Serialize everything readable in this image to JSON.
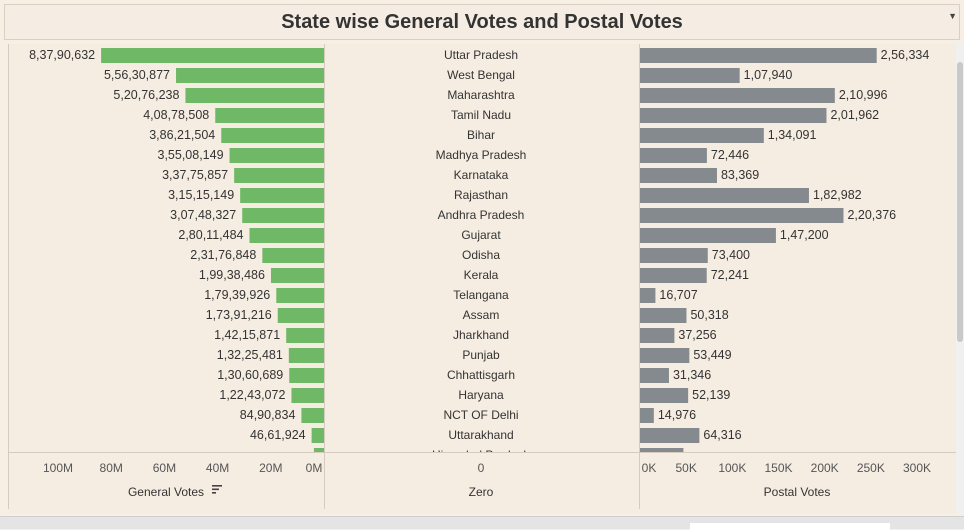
{
  "header": {
    "title": "State wise General Votes and Postal Votes"
  },
  "colors": {
    "general_bar": "#6fb865",
    "postal_bar": "#858a8e",
    "text": "#333333",
    "axis_text": "#555555",
    "divider": "#d5cbbf"
  },
  "chart_data": {
    "type": "bar",
    "orientation": "horizontal",
    "categories": [
      "Uttar Pradesh",
      "West Bengal",
      "Maharashtra",
      "Tamil Nadu",
      "Bihar",
      "Madhya Pradesh",
      "Karnataka",
      "Rajasthan",
      "Andhra Pradesh",
      "Gujarat",
      "Odisha",
      "Kerala",
      "Telangana",
      "Assam",
      "Jharkhand",
      "Punjab",
      "Chhattisgarh",
      "Haryana",
      "NCT OF Delhi",
      "Uttarakhand"
    ],
    "partial_category": "Himachal Pradesh",
    "series": [
      {
        "name": "General Votes",
        "values": [
          83790632,
          55630877,
          52076238,
          40878508,
          38621504,
          35508149,
          33775857,
          31515149,
          30748327,
          28011484,
          23176848,
          19938486,
          17939926,
          17391216,
          14215871,
          13225481,
          13060689,
          12243072,
          8490834,
          4661924
        ],
        "labels": [
          "8,37,90,632",
          "5,56,30,877",
          "5,20,76,238",
          "4,08,78,508",
          "3,86,21,504",
          "3,55,08,149",
          "3,37,75,857",
          "3,15,15,149",
          "3,07,48,327",
          "2,80,11,484",
          "2,31,76,848",
          "1,99,38,486",
          "1,79,39,926",
          "1,73,91,216",
          "1,42,15,871",
          "1,32,25,481",
          "1,30,60,689",
          "1,22,43,072",
          "84,90,834",
          "46,61,924"
        ],
        "partial_value": 3800000
      },
      {
        "name": "Postal Votes",
        "values": [
          256334,
          107940,
          210996,
          201962,
          134091,
          72446,
          83369,
          182982,
          220376,
          147200,
          73400,
          72241,
          16707,
          50318,
          37256,
          53449,
          31346,
          52139,
          14976,
          64316
        ],
        "labels": [
          "2,56,334",
          "1,07,940",
          "2,10,996",
          "2,01,962",
          "1,34,091",
          "72,446",
          "83,369",
          "1,82,982",
          "2,20,376",
          "1,47,200",
          "73,400",
          "72,241",
          "16,707",
          "50,318",
          "37,256",
          "53,449",
          "31,346",
          "52,139",
          "14,976",
          "64,316"
        ],
        "partial_value": 47000
      }
    ],
    "axes": {
      "general": {
        "label": "General Votes",
        "ticks": [
          "100M",
          "80M",
          "60M",
          "40M",
          "20M",
          "0M"
        ],
        "tick_values": [
          100000000,
          80000000,
          60000000,
          40000000,
          20000000,
          0
        ],
        "range": [
          0,
          100000000
        ],
        "reversed": true,
        "sorted_desc": true
      },
      "zero": {
        "label": "Zero",
        "ticks": [
          "0"
        ]
      },
      "postal": {
        "label": "Postal Votes",
        "ticks": [
          "0K",
          "50K",
          "100K",
          "150K",
          "200K",
          "250K",
          "300K"
        ],
        "tick_values": [
          0,
          50000,
          100000,
          150000,
          200000,
          250000,
          300000
        ],
        "range": [
          0,
          300000
        ]
      }
    },
    "grid": false,
    "legend": "none"
  }
}
